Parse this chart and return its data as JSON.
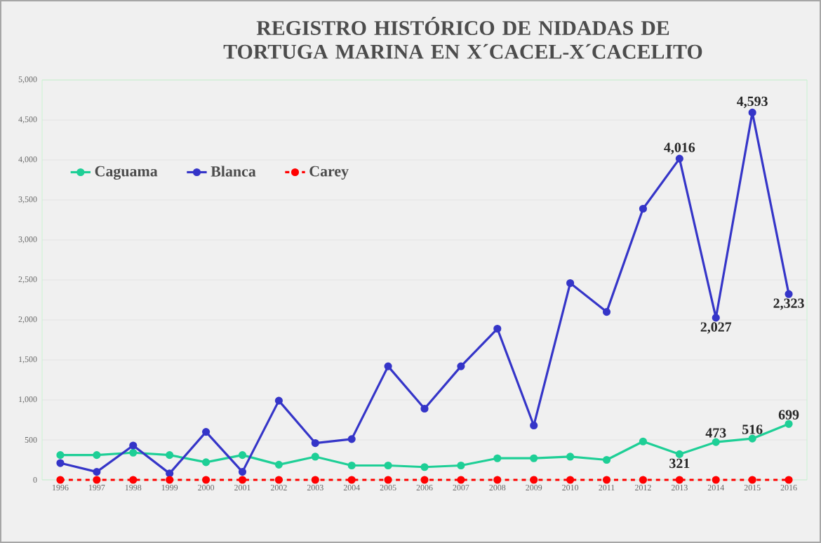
{
  "chart_data": {
    "type": "line",
    "title": "REGISTRO HISTÓRICO DE NIDADAS DE TORTUGA MARINA EN X´CACEL-X´CACELITO",
    "categories": [
      "1996",
      "1997",
      "1998",
      "1999",
      "2000",
      "2001",
      "2002",
      "2003",
      "2004",
      "2005",
      "2006",
      "2007",
      "2008",
      "2009",
      "2010",
      "2011",
      "2012",
      "2013",
      "2014",
      "2015",
      "2016"
    ],
    "series": [
      {
        "name": "Caguama",
        "color": "#1ecf96",
        "values": [
          310,
          310,
          340,
          310,
          220,
          310,
          190,
          290,
          180,
          180,
          160,
          180,
          270,
          270,
          290,
          250,
          480,
          321,
          473,
          516,
          699
        ],
        "value_labels": [
          null,
          null,
          null,
          null,
          null,
          null,
          null,
          null,
          null,
          null,
          null,
          null,
          null,
          null,
          null,
          null,
          null,
          "321",
          "473",
          "516",
          "699"
        ]
      },
      {
        "name": "Blanca",
        "color": "#3535c8",
        "values": [
          210,
          100,
          430,
          80,
          600,
          100,
          990,
          460,
          510,
          1420,
          890,
          1420,
          1890,
          680,
          2460,
          2100,
          3390,
          4016,
          2027,
          4593,
          2323
        ],
        "value_labels": [
          null,
          null,
          null,
          null,
          null,
          null,
          null,
          null,
          null,
          null,
          null,
          null,
          null,
          null,
          null,
          null,
          null,
          "4,016",
          "2,027",
          "4,593",
          "2,323"
        ]
      },
      {
        "name": "Carey",
        "color": "#ff0000",
        "line_style": "dashed",
        "values": [
          0,
          0,
          0,
          0,
          0,
          0,
          0,
          0,
          0,
          0,
          0,
          0,
          0,
          0,
          0,
          0,
          0,
          0,
          0,
          0,
          0
        ]
      }
    ],
    "ylim": [
      0,
      5000
    ],
    "yticks": [
      {
        "value": 0,
        "label": "0"
      },
      {
        "value": 500,
        "label": "500"
      },
      {
        "value": 1000,
        "label": "1,000"
      },
      {
        "value": 1500,
        "label": "1,500"
      },
      {
        "value": 2000,
        "label": "2,000"
      },
      {
        "value": 2500,
        "label": "2,500"
      },
      {
        "value": 3000,
        "label": "3,000"
      },
      {
        "value": 3500,
        "label": "3,500"
      },
      {
        "value": 4000,
        "label": "4,000"
      },
      {
        "value": 4500,
        "label": "4,500"
      },
      {
        "value": 5000,
        "label": "5,000"
      }
    ],
    "grid": "y",
    "legend": "top left",
    "marker": "circle"
  }
}
